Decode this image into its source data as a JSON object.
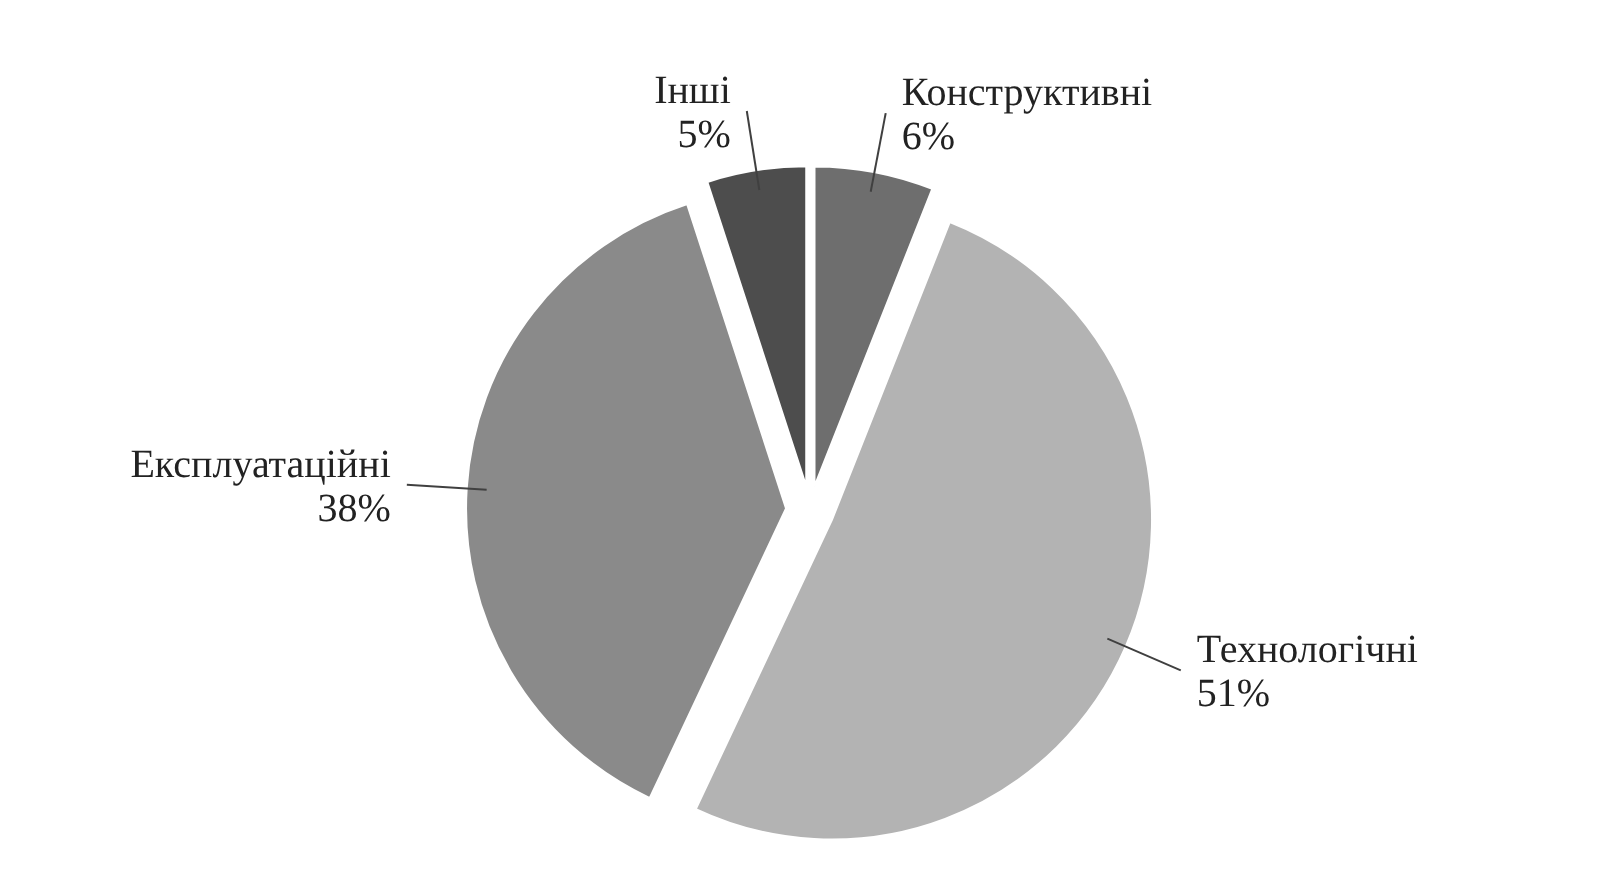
{
  "chart_data": {
    "type": "pie",
    "categories": [
      "Конструктивні",
      "Технологічні",
      "Експлуатаційні",
      "Інші"
    ],
    "values": [
      6,
      51,
      38,
      5
    ],
    "value_labels": [
      "6%",
      "51%",
      "38%",
      "5%"
    ],
    "colors": [
      "#6e6e6e",
      "#b3b3b3",
      "#8a8a8a",
      "#4d4d4d"
    ]
  }
}
